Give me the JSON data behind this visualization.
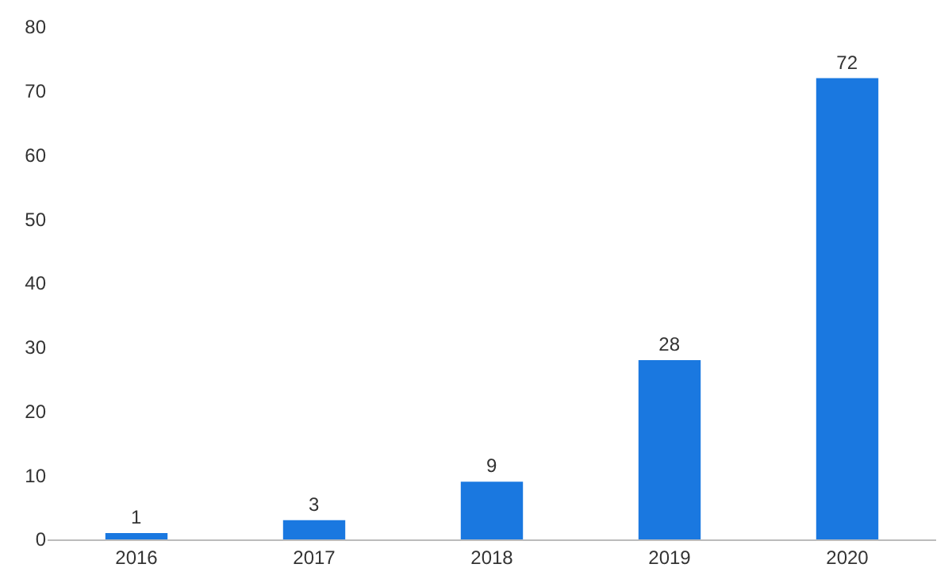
{
  "chart_data": {
    "type": "bar",
    "categories": [
      "2016",
      "2017",
      "2018",
      "2019",
      "2020"
    ],
    "values": [
      1,
      3,
      9,
      28,
      72
    ],
    "color": "#1a78e0",
    "ylim": [
      0,
      80
    ],
    "yticks": [
      0,
      10,
      20,
      30,
      40,
      50,
      60,
      70,
      80
    ],
    "grid": false,
    "data_labels": true
  }
}
